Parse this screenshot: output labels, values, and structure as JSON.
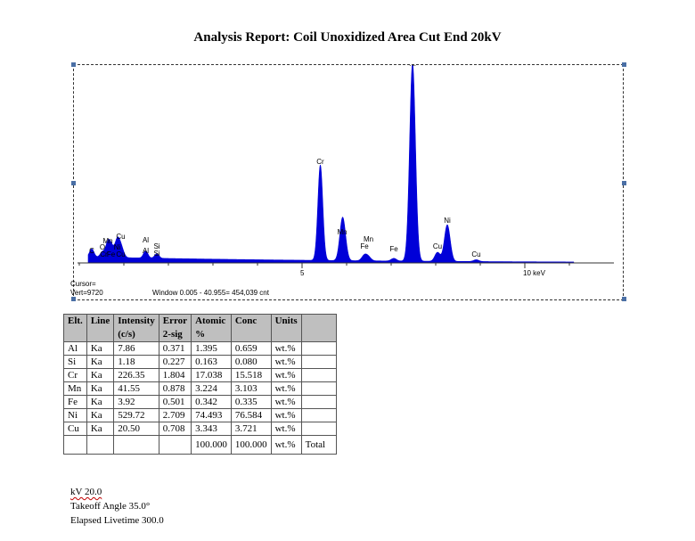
{
  "title": "Analysis Report: Coil Unoxidized Area Cut End 20kV",
  "chart_data": {
    "type": "line",
    "xlabel_unit": "10 keV",
    "x_ticks": [
      {
        "value": 5,
        "label": "5"
      },
      {
        "value": 10,
        "label": "10 keV"
      }
    ],
    "xlim": [
      0,
      12
    ],
    "spectrum": {
      "baseline": 7,
      "peaks": [
        {
          "center": 0.28,
          "height": 9,
          "width": 0.05
        },
        {
          "center": 0.52,
          "height": 6,
          "width": 0.05
        },
        {
          "center": 0.64,
          "height": 14,
          "width": 0.05
        },
        {
          "center": 0.72,
          "height": 12,
          "width": 0.06
        },
        {
          "center": 0.85,
          "height": 16,
          "width": 0.05
        },
        {
          "center": 0.93,
          "height": 13,
          "width": 0.06
        },
        {
          "center": 1.49,
          "height": 8,
          "width": 0.05
        },
        {
          "center": 1.74,
          "height": 5,
          "width": 0.05
        },
        {
          "center": 5.41,
          "height": 107,
          "width": 0.055
        },
        {
          "center": 5.9,
          "height": 38,
          "width": 0.06
        },
        {
          "center": 5.95,
          "height": 14,
          "width": 0.06
        },
        {
          "center": 6.4,
          "height": 6,
          "width": 0.06
        },
        {
          "center": 6.49,
          "height": 4,
          "width": 0.06
        },
        {
          "center": 7.06,
          "height": 3,
          "width": 0.06
        },
        {
          "center": 7.48,
          "height": 222,
          "width": 0.065
        },
        {
          "center": 8.04,
          "height": 10,
          "width": 0.06
        },
        {
          "center": 8.26,
          "height": 41,
          "width": 0.065
        },
        {
          "center": 8.91,
          "height": 2,
          "width": 0.06
        }
      ]
    },
    "peak_labels": [
      {
        "text": "Cu",
        "x": 0.93,
        "level": 27
      },
      {
        "text": "Mn",
        "x": 0.64,
        "level": 22
      },
      {
        "text": "O",
        "x": 0.52,
        "level": 15
      },
      {
        "text": "Ni",
        "x": 0.85,
        "level": 15
      },
      {
        "text": "C",
        "x": 0.28,
        "level": 11
      },
      {
        "text": "Cr",
        "x": 0.55,
        "level": 7
      },
      {
        "text": "Fe",
        "x": 0.71,
        "level": 7
      },
      {
        "text": "Cu",
        "x": 0.93,
        "level": 7
      },
      {
        "text": "Al",
        "x": 1.49,
        "level": 23
      },
      {
        "text": "Si",
        "x": 1.74,
        "level": 16
      },
      {
        "text": "Al",
        "x": 1.49,
        "level": 11
      },
      {
        "text": "Si",
        "x": 1.74,
        "level": 8
      },
      {
        "text": "Cr",
        "x": 5.41,
        "level": 111
      },
      {
        "text": "Mn",
        "x": 5.9,
        "level": 32
      },
      {
        "text": "Mn",
        "x": 6.49,
        "level": 24
      },
      {
        "text": "Fe",
        "x": 6.4,
        "level": 16
      },
      {
        "text": "Fe",
        "x": 7.06,
        "level": 13
      },
      {
        "text": "Ni",
        "x": 7.48,
        "level": 221
      },
      {
        "text": "Ni",
        "x": 8.26,
        "level": 45
      },
      {
        "text": "Cu",
        "x": 8.04,
        "level": 16
      },
      {
        "text": "Cu",
        "x": 8.91,
        "level": 7
      }
    ]
  },
  "readouts": {
    "cursor": "Cursor=",
    "vert": "Vert=9720",
    "window": "Window 0.005 - 40.955=  454,039 cnt"
  },
  "table": {
    "headers": [
      "Elt.",
      "Line",
      "Intensity\n(c/s)",
      "Error\n2-sig",
      "Atomic\n%",
      "Conc",
      "Units",
      ""
    ],
    "rows": [
      [
        "Al",
        "Ka",
        "7.86",
        "0.371",
        "1.395",
        "0.659",
        "wt.%",
        ""
      ],
      [
        "Si",
        "Ka",
        "1.18",
        "0.227",
        "0.163",
        "0.080",
        "wt.%",
        ""
      ],
      [
        "Cr",
        "Ka",
        "226.35",
        "1.804",
        "17.038",
        "15.518",
        "wt.%",
        ""
      ],
      [
        "Mn",
        "Ka",
        "41.55",
        "0.878",
        "3.224",
        "3.103",
        "wt.%",
        ""
      ],
      [
        "Fe",
        "Ka",
        "3.92",
        "0.501",
        "0.342",
        "0.335",
        "wt.%",
        ""
      ],
      [
        "Ni",
        "Ka",
        "529.72",
        "2.709",
        "74.493",
        "76.584",
        "wt.%",
        ""
      ],
      [
        "Cu",
        "Ka",
        "20.50",
        "0.708",
        "3.343",
        "3.721",
        "wt.%",
        ""
      ]
    ],
    "total_row": [
      "",
      "",
      "",
      "",
      "100.000",
      "100.000",
      "wt.%",
      "Total"
    ]
  },
  "footer": {
    "kv": "kV  20.0",
    "takeoff": "Takeoff Angle  35.0°",
    "livetime": "Elapsed Livetime  300.0"
  }
}
